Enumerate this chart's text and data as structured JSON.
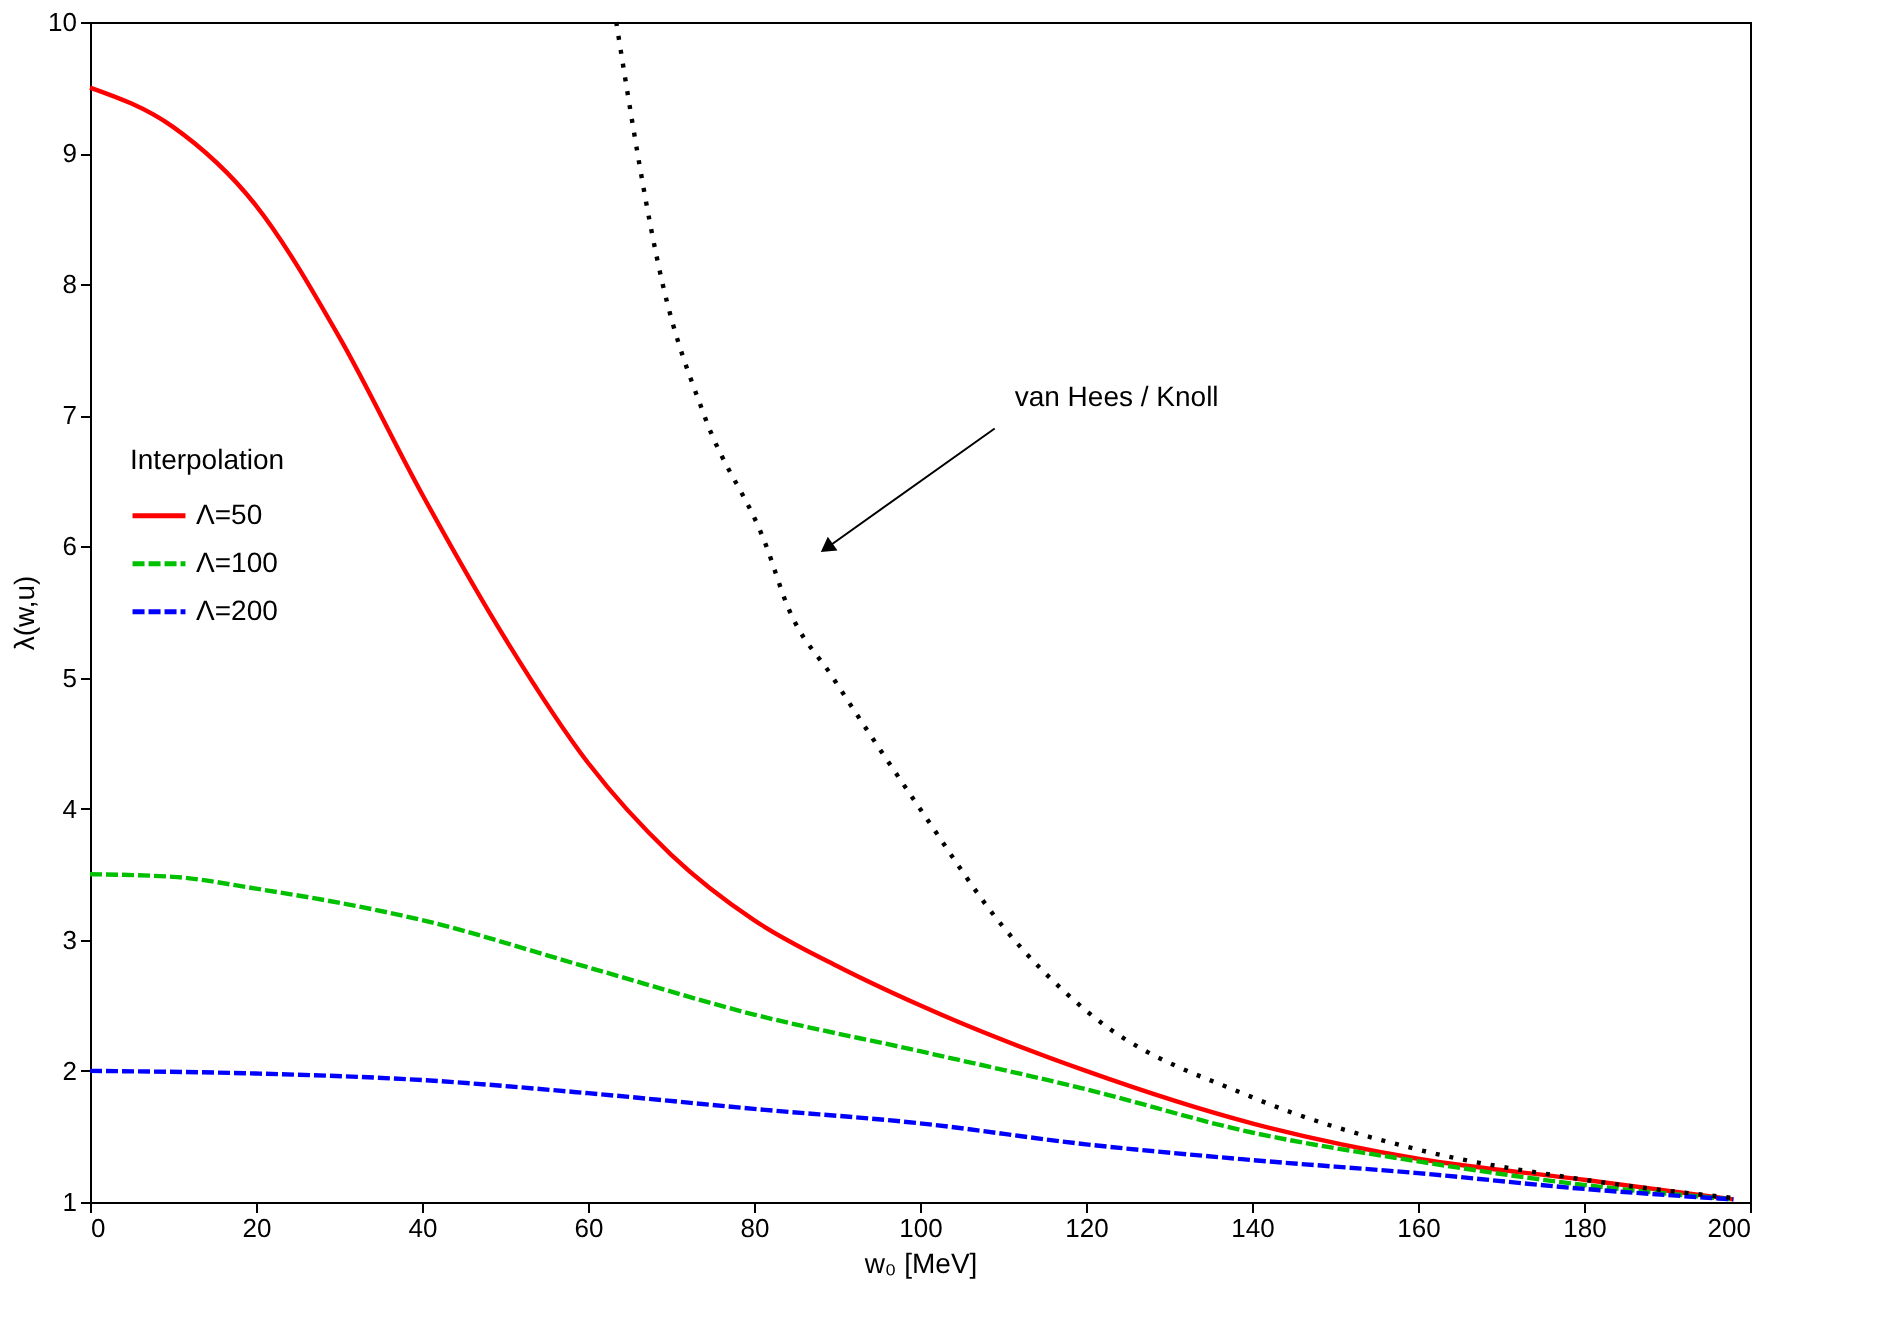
{
  "chart_data": {
    "type": "line",
    "xlabel": "w₀ [MeV]",
    "ylabel": "λ(w,u)",
    "legend_title": "Interpolation",
    "legend": "left",
    "grid": false,
    "marker": "none",
    "xlim": [
      0,
      200
    ],
    "ylim": [
      1,
      10
    ],
    "xticks": [
      0,
      20,
      40,
      60,
      80,
      100,
      120,
      140,
      160,
      180,
      200
    ],
    "yticks": [
      1,
      2,
      3,
      4,
      5,
      6,
      7,
      8,
      9,
      10
    ],
    "annotations": [
      {
        "text": "van Hees / Knoll",
        "x": 89,
        "y": 6
      }
    ],
    "series": [
      {
        "name": "Λ=50",
        "color": "#ff0000",
        "line_style": "solid",
        "x": [
          0,
          10,
          20,
          30,
          40,
          50,
          60,
          70,
          80,
          90,
          100,
          120,
          140,
          160,
          180,
          198
        ],
        "values": [
          9.5,
          9.2,
          8.6,
          7.6,
          6.4,
          5.3,
          4.35,
          3.65,
          3.15,
          2.8,
          2.5,
          2.0,
          1.6,
          1.33,
          1.17,
          1.02
        ]
      },
      {
        "name": "Λ=100",
        "color": "#00c000",
        "line_style": "dashed",
        "x": [
          0,
          10,
          20,
          40,
          60,
          80,
          100,
          120,
          140,
          160,
          180,
          198
        ],
        "values": [
          3.5,
          3.48,
          3.39,
          3.15,
          2.79,
          2.43,
          2.15,
          1.86,
          1.53,
          1.31,
          1.13,
          1.02
        ]
      },
      {
        "name": "Λ=200",
        "color": "#0000ff",
        "line_style": "dashed",
        "x": [
          0,
          20,
          40,
          60,
          80,
          100,
          120,
          140,
          160,
          180,
          198
        ],
        "values": [
          2.0,
          1.98,
          1.93,
          1.83,
          1.71,
          1.6,
          1.44,
          1.32,
          1.22,
          1.1,
          1.02
        ]
      },
      {
        "color": "#000000",
        "line_style": "dotted",
        "x": [
          63.4,
          69,
          74,
          81.5,
          84,
          89.5,
          100,
          110,
          120,
          140,
          160,
          180,
          198
        ],
        "values": [
          10,
          8,
          7,
          6,
          5.55,
          5,
          4.0,
          3.1,
          2.46,
          1.8,
          1.4,
          1.17,
          1.03
        ]
      }
    ]
  }
}
